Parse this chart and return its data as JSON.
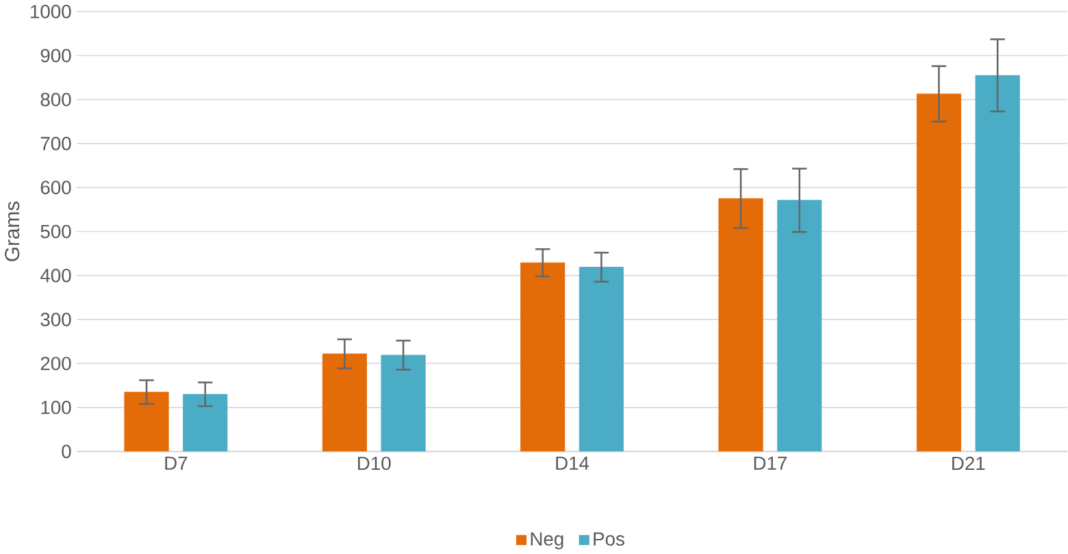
{
  "chart_data": {
    "type": "bar",
    "ylabel": "Grams",
    "categories": [
      "D7",
      "D10",
      "D14",
      "D17",
      "D21"
    ],
    "series": [
      {
        "name": "Neg",
        "color": "#e36c09",
        "values": [
          135,
          222,
          429,
          575,
          813
        ],
        "errors": [
          27,
          33,
          31,
          67,
          63
        ]
      },
      {
        "name": "Pos",
        "color": "#4bacc6",
        "values": [
          130,
          219,
          419,
          571,
          855
        ],
        "errors": [
          27,
          33,
          33,
          72,
          82
        ]
      }
    ],
    "ylim": [
      0,
      1000
    ],
    "yticks": [
      0,
      100,
      200,
      300,
      400,
      500,
      600,
      700,
      800,
      900,
      1000
    ],
    "grid": "y",
    "legend": "bottom"
  }
}
